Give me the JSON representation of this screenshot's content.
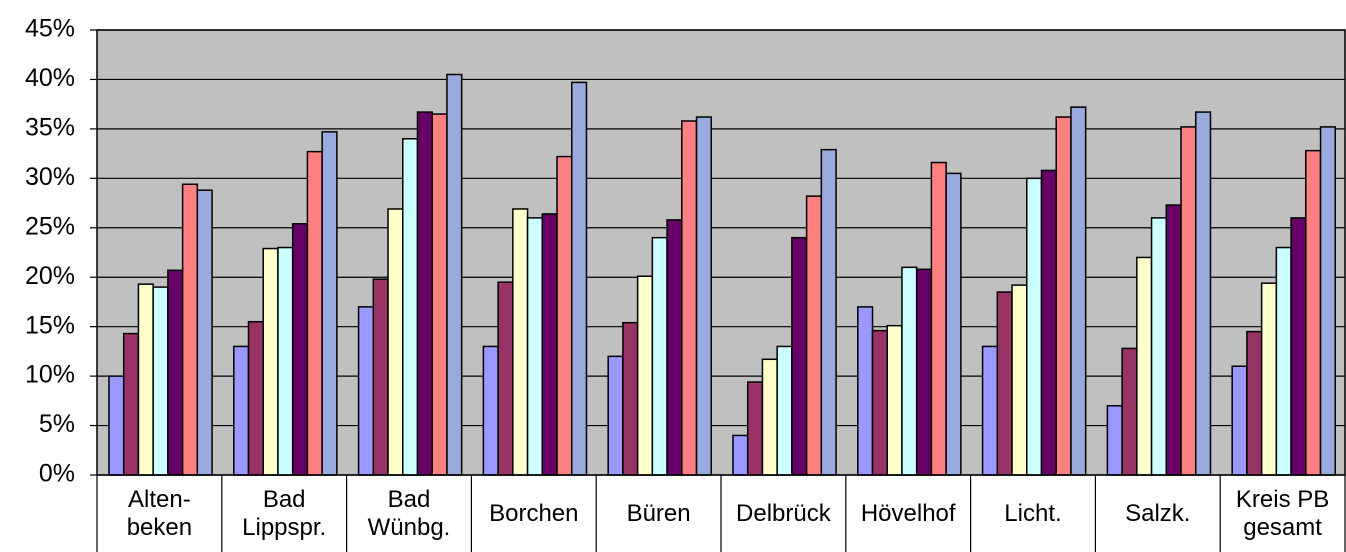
{
  "chart_data": {
    "type": "bar",
    "categories": [
      "Alten-\nbeken",
      "Bad\nLippspr.",
      "Bad\nWünbg.",
      "Borchen",
      "Büren",
      "Delbrück",
      "Hövelhof",
      "Licht.",
      "Salzk.",
      "Kreis PB\ngesamt"
    ],
    "series": [
      {
        "color": "#9999ff",
        "values": [
          10,
          13,
          17,
          13,
          12,
          4,
          17,
          13,
          7,
          11
        ]
      },
      {
        "color": "#993366",
        "values": [
          14.3,
          15.5,
          19.8,
          19.5,
          15.4,
          9.4,
          14.6,
          18.5,
          12.8,
          14.5
        ]
      },
      {
        "color": "#ffffcc",
        "values": [
          19.3,
          22.9,
          26.9,
          26.9,
          20.1,
          11.7,
          15.1,
          19.2,
          22,
          19.4
        ]
      },
      {
        "color": "#ccffff",
        "values": [
          19,
          23,
          34,
          26,
          24,
          13,
          21,
          30,
          26,
          23
        ]
      },
      {
        "color": "#660066",
        "values": [
          20.7,
          25.4,
          36.7,
          26.4,
          25.8,
          24,
          20.8,
          30.8,
          27.3,
          26
        ]
      },
      {
        "color": "#ff8080",
        "values": [
          29.4,
          32.7,
          36.5,
          32.2,
          35.8,
          28.2,
          31.6,
          36.2,
          35.2,
          32.8
        ]
      },
      {
        "color": "#99aadd",
        "values": [
          28.8,
          34.7,
          40.5,
          39.7,
          36.2,
          32.9,
          30.5,
          37.2,
          36.7,
          35.2
        ]
      }
    ],
    "ylim": [
      0,
      45
    ],
    "yticks": [
      {
        "value": 0,
        "label": "0%"
      },
      {
        "value": 5,
        "label": "5%"
      },
      {
        "value": 10,
        "label": "10%"
      },
      {
        "value": 15,
        "label": "15%"
      },
      {
        "value": 20,
        "label": "20%"
      },
      {
        "value": 25,
        "label": "25%"
      },
      {
        "value": 30,
        "label": "30%"
      },
      {
        "value": 35,
        "label": "35%"
      },
      {
        "value": 40,
        "label": "40%"
      },
      {
        "value": 45,
        "label": "45%"
      }
    ],
    "grid": true,
    "plot_background": "#c0c0c0"
  }
}
